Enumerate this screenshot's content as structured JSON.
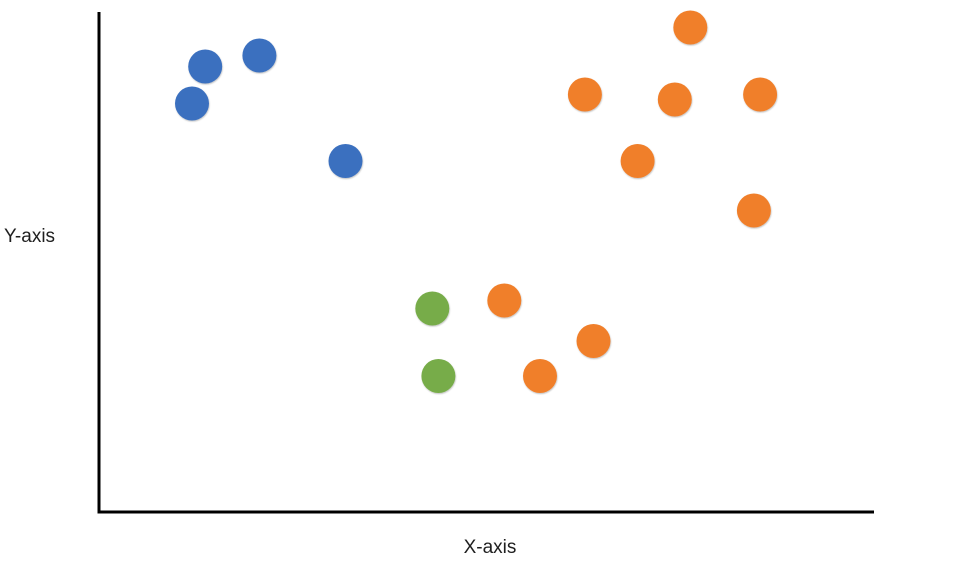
{
  "chart_data": {
    "type": "scatter",
    "xlabel": "X-axis",
    "ylabel": "Y-axis",
    "xlim": [
      0,
      100
    ],
    "ylim": [
      0,
      100
    ],
    "grid": false,
    "tick_labels": false,
    "legend": "none",
    "series": [
      {
        "color": "#3a6fbf",
        "points": [
          {
            "x": 12.0,
            "y": 81.7
          },
          {
            "x": 13.7,
            "y": 89.1
          },
          {
            "x": 20.7,
            "y": 91.3
          },
          {
            "x": 31.8,
            "y": 70.2
          }
        ]
      },
      {
        "color": "#f07f2b",
        "points": [
          {
            "x": 76.3,
            "y": 96.9
          },
          {
            "x": 62.7,
            "y": 83.5
          },
          {
            "x": 74.3,
            "y": 82.5
          },
          {
            "x": 85.3,
            "y": 83.5
          },
          {
            "x": 69.5,
            "y": 70.2
          },
          {
            "x": 84.5,
            "y": 60.3
          },
          {
            "x": 52.3,
            "y": 42.3
          },
          {
            "x": 63.8,
            "y": 34.2
          },
          {
            "x": 56.9,
            "y": 27.2
          }
        ]
      },
      {
        "color": "#77ac48",
        "points": [
          {
            "x": 43.0,
            "y": 40.7
          },
          {
            "x": 43.8,
            "y": 27.2
          }
        ]
      }
    ]
  }
}
